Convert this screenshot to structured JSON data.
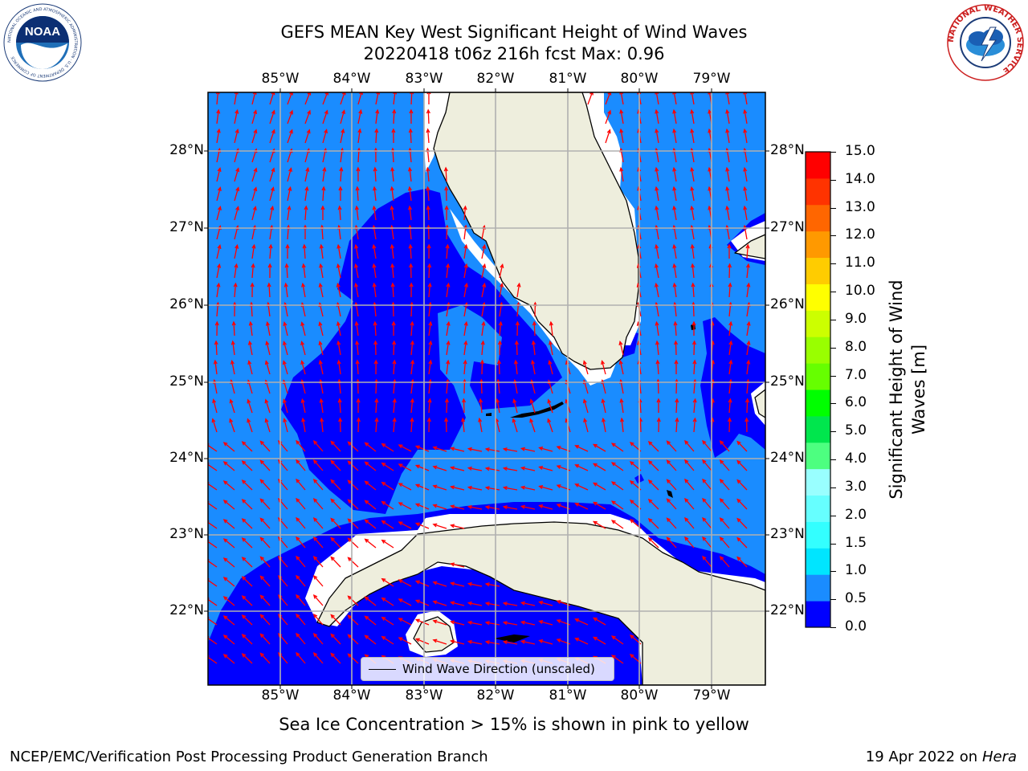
{
  "title": {
    "line1": "GEFS MEAN Key West Significant Height of Wind Waves",
    "line2": "20220418 t06z 216h fcst   Max: 0.96"
  },
  "map": {
    "lon_labels": [
      "85°W",
      "84°W",
      "83°W",
      "82°W",
      "81°W",
      "80°W",
      "79°W"
    ],
    "lat_labels": [
      "28°N",
      "27°N",
      "26°N",
      "25°N",
      "24°N",
      "23°N",
      "22°N"
    ],
    "colors": {
      "wave_low": "#0000ff",
      "wave_mid": "#1a8cff",
      "land": "#eeeedd",
      "arrow": "#ff0000",
      "grid": "#b0b0b0"
    },
    "legend_label": "Wind Wave Direction (unscaled)"
  },
  "colorbar": {
    "ticks": [
      "15.0",
      "14.0",
      "13.0",
      "12.0",
      "11.0",
      "10.0",
      "9.0",
      "8.0",
      "7.0",
      "6.0",
      "5.0",
      "4.0",
      "3.0",
      "2.0",
      "1.5",
      "1.0",
      "0.5",
      "0.0"
    ],
    "label_line1": "Significant Height of Wind",
    "label_line2": "Waves [m]",
    "band_colors": [
      "#0000ff",
      "#1a8cff",
      "#00e5ff",
      "#33ffff",
      "#66ffff",
      "#99ffff",
      "#4dff80",
      "#00e64d",
      "#00ff00",
      "#66ff00",
      "#99ff00",
      "#ccff00",
      "#ffff00",
      "#ffcc00",
      "#ff9900",
      "#ff6600",
      "#ff3300",
      "#ff0000"
    ]
  },
  "notes": {
    "sea_ice": "Sea Ice Concentration > 15% is shown in pink to yellow"
  },
  "footer": {
    "left": "NCEP/EMC/Verification Post Processing Product Generation Branch",
    "right_prefix": "19 Apr 2022 on ",
    "right_machine": "Hera"
  },
  "logos": {
    "noaa_text": "NOAA",
    "noaa_ring_text": "NATIONAL OCEANIC AND ATMOSPHERIC ADMINISTRATION · U.S. DEPARTMENT OF COMMERCE",
    "nws_ring_text": "NATIONAL WEATHER SERVICE"
  }
}
